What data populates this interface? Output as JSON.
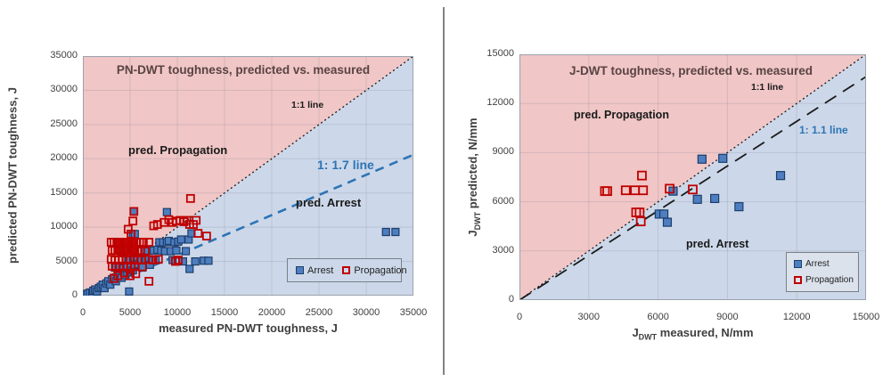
{
  "chart_data": [
    {
      "type": "scatter",
      "title": "PN-DWT toughness, predicted vs. measured",
      "xlabel": "measured PN-DWT toughness, J",
      "ylabel": "predicted PN-DWT toughness, J",
      "xlim": [
        0,
        35000
      ],
      "ylim": [
        0,
        35000
      ],
      "x_ticks": [
        0,
        5000,
        10000,
        15000,
        20000,
        25000,
        30000,
        35000
      ],
      "y_ticks": [
        0,
        5000,
        10000,
        15000,
        20000,
        25000,
        30000,
        35000
      ],
      "grid": true,
      "ratio": 1.7,
      "annotations": {
        "one_to_one": "1:1 line",
        "ratio_line": "1: 1.7 line",
        "propagation_region": "pred. Propagation",
        "arrest_region": "pred. Arrest"
      },
      "legend": [
        "Arrest",
        "Propagation"
      ],
      "legend_position": "bottom-right-horizontal",
      "colors": {
        "propagation_region": "#f0c6c6",
        "arrest_region": "#ccd8e9",
        "ratio_line": "#2e74b5",
        "one_to_one_line": "#1a1a1a",
        "arrest_fill": "#4d7ebf",
        "arrest_stroke": "#1d3d6b",
        "propagation_stroke": "#c00000"
      },
      "series": [
        {
          "name": "Arrest",
          "marker": "filled-square",
          "points": [
            [
              250,
              150
            ],
            [
              500,
              300
            ],
            [
              750,
              450
            ],
            [
              1000,
              350
            ],
            [
              1100,
              700
            ],
            [
              1300,
              900
            ],
            [
              1500,
              600
            ],
            [
              1700,
              1100
            ],
            [
              1900,
              1300
            ],
            [
              2100,
              1600
            ],
            [
              2300,
              1100
            ],
            [
              2500,
              1800
            ],
            [
              2700,
              2100
            ],
            [
              2900,
              1600
            ],
            [
              3100,
              2400
            ],
            [
              3300,
              2600
            ],
            [
              3500,
              2100
            ],
            [
              3700,
              2800
            ],
            [
              3900,
              3100
            ],
            [
              4100,
              2600
            ],
            [
              4300,
              3600
            ],
            [
              4500,
              3000
            ],
            [
              4700,
              3400
            ],
            [
              4900,
              600
            ],
            [
              3400,
              4100
            ],
            [
              3800,
              4300
            ],
            [
              4200,
              4000
            ],
            [
              4600,
              4400
            ],
            [
              4800,
              5200
            ],
            [
              5100,
              4300
            ],
            [
              5300,
              3700
            ],
            [
              5500,
              4500
            ],
            [
              5700,
              5300
            ],
            [
              5900,
              4600
            ],
            [
              6100,
              5200
            ],
            [
              6300,
              4100
            ],
            [
              6500,
              6500
            ],
            [
              6700,
              5300
            ],
            [
              6900,
              6600
            ],
            [
              7100,
              4500
            ],
            [
              7300,
              5300
            ],
            [
              7500,
              6600
            ],
            [
              7700,
              5200
            ],
            [
              7900,
              6700
            ],
            [
              8100,
              7800
            ],
            [
              8300,
              6600
            ],
            [
              8500,
              7800
            ],
            [
              8700,
              6500
            ],
            [
              8900,
              7800
            ],
            [
              9100,
              8000
            ],
            [
              9300,
              6500
            ],
            [
              9500,
              5200
            ],
            [
              9700,
              7800
            ],
            [
              9900,
              6600
            ],
            [
              10100,
              7900
            ],
            [
              10400,
              8200
            ],
            [
              10600,
              5000
            ],
            [
              10900,
              6500
            ],
            [
              11200,
              8200
            ],
            [
              11500,
              9100
            ],
            [
              11900,
              5000
            ],
            [
              11300,
              3900
            ],
            [
              12800,
              5100
            ],
            [
              13300,
              5100
            ],
            [
              5300,
              9000
            ],
            [
              5500,
              9000
            ],
            [
              5400,
              12300
            ],
            [
              8900,
              12200
            ],
            [
              32100,
              9300
            ],
            [
              33100,
              9300
            ]
          ]
        },
        {
          "name": "Propagation",
          "marker": "open-square",
          "points": [
            [
              3000,
              7800
            ],
            [
              3300,
              7800
            ],
            [
              3600,
              7800
            ],
            [
              3900,
              7800
            ],
            [
              4200,
              7800
            ],
            [
              4500,
              7800
            ],
            [
              4800,
              7800
            ],
            [
              5100,
              7800
            ],
            [
              5400,
              7800
            ],
            [
              5700,
              7800
            ],
            [
              6000,
              7800
            ],
            [
              6400,
              7800
            ],
            [
              7000,
              7800
            ],
            [
              3100,
              6600
            ],
            [
              3400,
              6600
            ],
            [
              3700,
              6600
            ],
            [
              4000,
              6500
            ],
            [
              4300,
              6600
            ],
            [
              4600,
              6600
            ],
            [
              4900,
              6500
            ],
            [
              5200,
              6600
            ],
            [
              5500,
              6600
            ],
            [
              5800,
              6500
            ],
            [
              6100,
              6600
            ],
            [
              6600,
              6500
            ],
            [
              3000,
              5300
            ],
            [
              3400,
              5200
            ],
            [
              3800,
              5200
            ],
            [
              4200,
              5300
            ],
            [
              4600,
              5200
            ],
            [
              5000,
              5200
            ],
            [
              5400,
              5300
            ],
            [
              5800,
              5200
            ],
            [
              6200,
              5200
            ],
            [
              7000,
              5300
            ],
            [
              7400,
              5200
            ],
            [
              8000,
              5300
            ],
            [
              9800,
              5000
            ],
            [
              10100,
              5200
            ],
            [
              3100,
              4300
            ],
            [
              3500,
              4200
            ],
            [
              3900,
              4300
            ],
            [
              4300,
              4200
            ],
            [
              4700,
              4300
            ],
            [
              5100,
              4200
            ],
            [
              5500,
              4300
            ],
            [
              6300,
              4200
            ],
            [
              3300,
              2500
            ],
            [
              3700,
              2900
            ],
            [
              4400,
              3300
            ],
            [
              5000,
              2900
            ],
            [
              5600,
              3200
            ],
            [
              7000,
              2100
            ],
            [
              4800,
              9700
            ],
            [
              5100,
              9000
            ],
            [
              5300,
              10900
            ],
            [
              5400,
              12300
            ],
            [
              7500,
              10200
            ],
            [
              7900,
              10400
            ],
            [
              8600,
              10700
            ],
            [
              9100,
              11100
            ],
            [
              9500,
              10700
            ],
            [
              9900,
              10900
            ],
            [
              10300,
              11000
            ],
            [
              10700,
              10800
            ],
            [
              11000,
              11000
            ],
            [
              11300,
              10400
            ],
            [
              11700,
              10400
            ],
            [
              12000,
              11000
            ],
            [
              11400,
              14200
            ],
            [
              13100,
              8700
            ],
            [
              12200,
              9100
            ]
          ]
        }
      ]
    },
    {
      "type": "scatter",
      "title": "J-DWT toughness, predicted vs. measured",
      "xlabel_parts": {
        "prefix": "J",
        "sub": "DWT",
        "rest": " measured, N/mm"
      },
      "ylabel_parts": {
        "prefix": "J",
        "sub": "DWT",
        "rest": " predicted, N/mm"
      },
      "xlim": [
        0,
        15000
      ],
      "ylim": [
        0,
        15000
      ],
      "x_ticks": [
        0,
        3000,
        6000,
        9000,
        12000,
        15000
      ],
      "y_ticks": [
        0,
        3000,
        6000,
        9000,
        12000,
        15000
      ],
      "grid": true,
      "ratio": 1.1,
      "annotations": {
        "one_to_one": "1:1 line",
        "ratio_line": "1: 1.1 line",
        "propagation_region": "pred. Propagation",
        "arrest_region": "pred. Arrest"
      },
      "legend": [
        "Arrest",
        "Propagation"
      ],
      "legend_position": "bottom-right-vertical",
      "colors": {
        "propagation_region": "#f0c6c6",
        "arrest_region": "#ccd8e9",
        "ratio_line": "#1a1a1a",
        "one_to_one_line": "#1a1a1a",
        "arrest_fill": "#4d7ebf",
        "arrest_stroke": "#1d3d6b",
        "propagation_stroke": "#c00000"
      },
      "series": [
        {
          "name": "Arrest",
          "marker": "filled-square",
          "points": [
            [
              6650,
              6650
            ],
            [
              7900,
              8600
            ],
            [
              8800,
              8650
            ],
            [
              7700,
              6150
            ],
            [
              8450,
              6200
            ],
            [
              9500,
              5700
            ],
            [
              6050,
              5250
            ],
            [
              6250,
              5250
            ],
            [
              6400,
              4750
            ],
            [
              11300,
              7600
            ]
          ]
        },
        {
          "name": "Propagation",
          "marker": "open-square",
          "points": [
            [
              3700,
              6650
            ],
            [
              3800,
              6650
            ],
            [
              4600,
              6700
            ],
            [
              5000,
              6700
            ],
            [
              5350,
              6700
            ],
            [
              5300,
              7600
            ],
            [
              6500,
              6800
            ],
            [
              7500,
              6750
            ],
            [
              5050,
              5350
            ],
            [
              5200,
              5350
            ],
            [
              5250,
              4800
            ]
          ]
        }
      ]
    }
  ]
}
